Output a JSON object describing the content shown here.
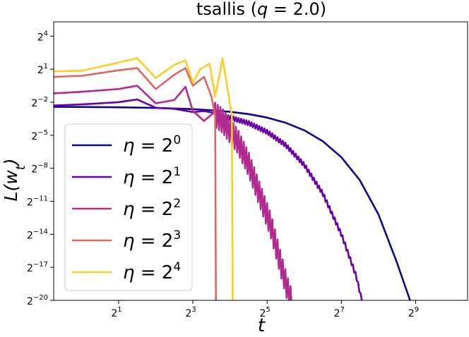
{
  "chart_data": {
    "type": "line",
    "title": "tsallis (q = 2.0)",
    "title_parts": {
      "prefix": "tsallis (",
      "var": "q",
      "rest": " = 2.0)"
    },
    "xlabel": "t",
    "ylabel": "L(w_t)",
    "ylabel_parts": {
      "main": "L(w",
      "sub": "t",
      "close": ")"
    },
    "xscale": "log2",
    "yscale": "log2",
    "xlim_log2": [
      -0.75,
      10.4
    ],
    "ylim_log2": [
      -20,
      5.3
    ],
    "x_ticks": [
      {
        "base": "2",
        "exp": "1",
        "log2": 1
      },
      {
        "base": "2",
        "exp": "3",
        "log2": 3
      },
      {
        "base": "2",
        "exp": "5",
        "log2": 5
      },
      {
        "base": "2",
        "exp": "7",
        "log2": 7
      },
      {
        "base": "2",
        "exp": "9",
        "log2": 9
      }
    ],
    "y_ticks": [
      {
        "base": "2",
        "exp": "4",
        "log2": 4
      },
      {
        "base": "2",
        "exp": "1",
        "log2": 1
      },
      {
        "base": "2",
        "exp": "−2",
        "log2": -2
      },
      {
        "base": "2",
        "exp": "−5",
        "log2": -5
      },
      {
        "base": "2",
        "exp": "−8",
        "log2": -8
      },
      {
        "base": "2",
        "exp": "−11",
        "log2": -11
      },
      {
        "base": "2",
        "exp": "−14",
        "log2": -14
      },
      {
        "base": "2",
        "exp": "−17",
        "log2": -17
      },
      {
        "base": "2",
        "exp": "−20",
        "log2": -20
      }
    ],
    "grid": false,
    "legend_position": "lower-left",
    "series": [
      {
        "name": "η = 2^0",
        "label_parts": {
          "lhs": "η = ",
          "base": "2",
          "exp": "0"
        },
        "color": "#0d0887",
        "kind": "smooth",
        "points_log2": [
          [
            -0.75,
            -2.42
          ],
          [
            0,
            -2.43
          ],
          [
            1,
            -2.46
          ],
          [
            2,
            -2.52
          ],
          [
            3,
            -2.63
          ],
          [
            3.5,
            -2.73
          ],
          [
            4,
            -2.87
          ],
          [
            4.5,
            -3.08
          ],
          [
            5,
            -3.4
          ],
          [
            5.5,
            -3.87
          ],
          [
            6,
            -4.55
          ],
          [
            6.5,
            -5.55
          ],
          [
            7,
            -7
          ],
          [
            7.5,
            -9.1
          ],
          [
            8,
            -12.2
          ],
          [
            8.5,
            -16.6
          ],
          [
            8.85,
            -20
          ]
        ]
      },
      {
        "name": "η = 2^1",
        "label_parts": {
          "lhs": "η = ",
          "base": "2",
          "exp": "1"
        },
        "color": "#6a00a8",
        "kind": "zigzag",
        "points_log2": [
          [
            -0.75,
            -2.3
          ],
          [
            0,
            -2.2
          ],
          [
            1,
            -2.0
          ],
          [
            1.5,
            -1.75
          ],
          [
            2,
            -2.5
          ],
          [
            2.5,
            -2.6
          ],
          [
            3,
            -2.9
          ],
          [
            3.3,
            -2.8
          ],
          [
            3.6,
            -3.2
          ],
          [
            4,
            -3.4
          ],
          [
            4.5,
            -3.9
          ],
          [
            5,
            -4.7
          ],
          [
            5.5,
            -5.9
          ],
          [
            6,
            -7.7
          ],
          [
            6.5,
            -10.3
          ],
          [
            7,
            -14
          ],
          [
            7.4,
            -17.8
          ],
          [
            7.55,
            -20
          ]
        ],
        "zigzag_start_log2": 3.6,
        "zigzag_amp_log2": 0.2
      },
      {
        "name": "η = 2^2",
        "label_parts": {
          "lhs": "η = ",
          "base": "2",
          "exp": "2"
        },
        "color": "#b12a90",
        "kind": "zigzag",
        "points_log2": [
          [
            -0.75,
            -1.2
          ],
          [
            0,
            -1.05
          ],
          [
            1,
            -0.8
          ],
          [
            1.5,
            -0.5
          ],
          [
            2,
            -2.1
          ],
          [
            2.5,
            -1.8
          ],
          [
            2.8,
            -0.6
          ],
          [
            3,
            -2.8
          ],
          [
            3.3,
            -3.7
          ],
          [
            3.55,
            -3.0
          ],
          [
            3.8,
            -3.7
          ],
          [
            4.2,
            -5.5
          ],
          [
            4.5,
            -7.6
          ],
          [
            4.8,
            -10.4
          ],
          [
            5.1,
            -13.2
          ],
          [
            5.35,
            -16.5
          ],
          [
            5.55,
            -19
          ],
          [
            5.65,
            -20
          ]
        ],
        "zigzag_start_log2": 3.6,
        "zigzag_amp_log2": 1.1
      },
      {
        "name": "η = 2^3",
        "label_parts": {
          "lhs": "η = ",
          "base": "2",
          "exp": "3"
        },
        "color": "#e16462",
        "kind": "polyline",
        "points_log2": [
          [
            -0.75,
            0.3
          ],
          [
            0,
            0.4
          ],
          [
            1,
            0.9
          ],
          [
            1.5,
            1.1
          ],
          [
            2,
            -0.8
          ],
          [
            2.5,
            0.5
          ],
          [
            2.8,
            1.1
          ],
          [
            3,
            -0.5
          ],
          [
            3.3,
            0.3
          ],
          [
            3.5,
            -1.5
          ],
          [
            3.6,
            -3.2
          ],
          [
            3.62,
            -20
          ]
        ]
      },
      {
        "name": "η = 2^4",
        "label_parts": {
          "lhs": "η = ",
          "base": "2",
          "exp": "4"
        },
        "color": "#fcce25",
        "kind": "polyline",
        "points_log2": [
          [
            -0.75,
            0.8
          ],
          [
            0,
            0.85
          ],
          [
            1,
            1.6
          ],
          [
            1.5,
            2.0
          ],
          [
            2,
            0.2
          ],
          [
            2.5,
            1.4
          ],
          [
            2.8,
            1.8
          ],
          [
            3,
            -0.2
          ],
          [
            3.2,
            1.0
          ],
          [
            3.45,
            1.5
          ],
          [
            3.6,
            -1.5
          ],
          [
            3.8,
            2.0
          ],
          [
            4.05,
            -3.2
          ],
          [
            4.07,
            -20
          ]
        ]
      }
    ]
  }
}
